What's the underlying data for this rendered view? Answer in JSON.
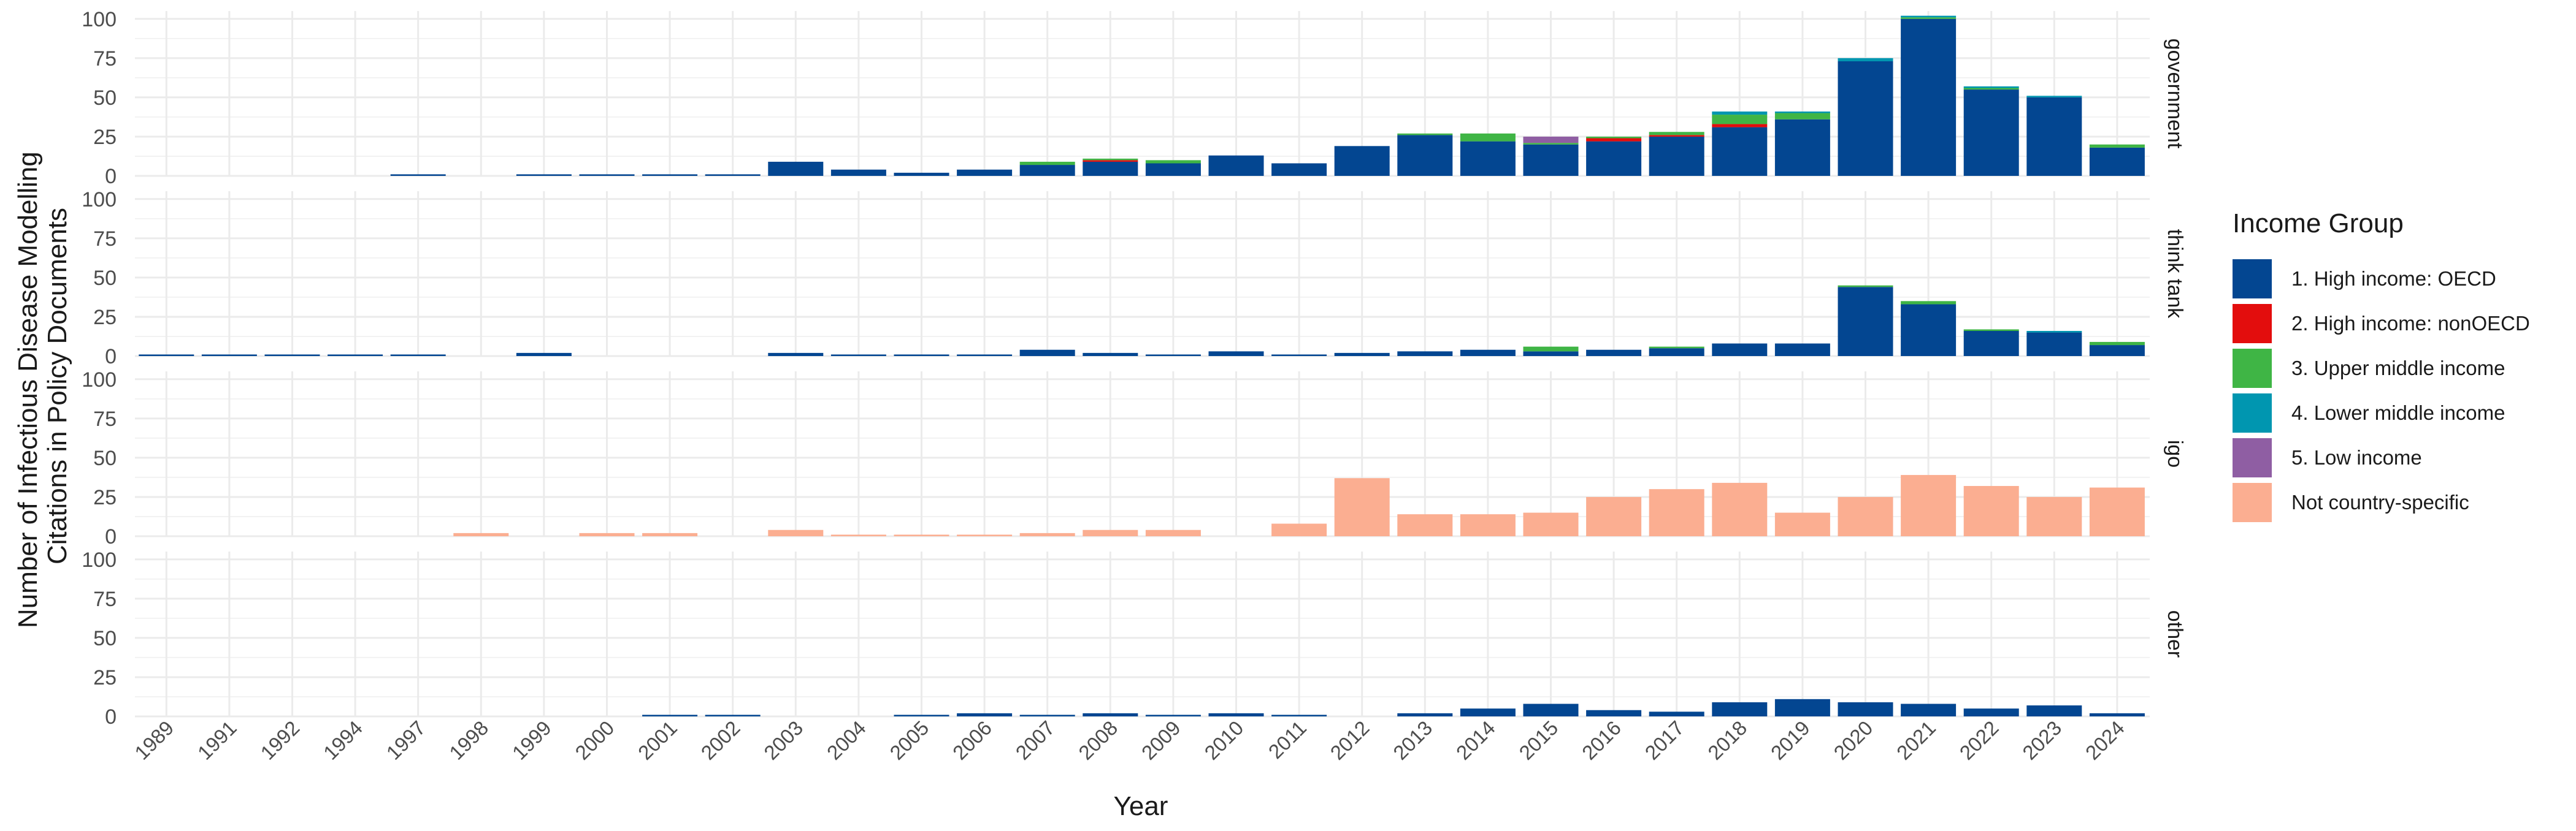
{
  "chart_data": {
    "type": "bar",
    "stacked": true,
    "facets": [
      "government",
      "think tank",
      "igo",
      "other"
    ],
    "xlabel": "Year",
    "ylabel_lines": [
      "Number of Infectious Disease Modelling",
      "Citations in Policy Documents"
    ],
    "ylim": [
      0,
      105
    ],
    "yticks": [
      0,
      25,
      50,
      75,
      100
    ],
    "grid": true,
    "legend_position": "right",
    "legend_title": "Income Group",
    "categories": [
      "1989",
      "1991",
      "1992",
      "1994",
      "1997",
      "1998",
      "1999",
      "2000",
      "2001",
      "2002",
      "2003",
      "2004",
      "2005",
      "2006",
      "2007",
      "2008",
      "2009",
      "2010",
      "2011",
      "2012",
      "2013",
      "2014",
      "2015",
      "2016",
      "2017",
      "2018",
      "2019",
      "2020",
      "2021",
      "2022",
      "2023",
      "2024"
    ],
    "series": [
      {
        "name": "1. High income: OECD",
        "color": "#034691"
      },
      {
        "name": "2. High income: nonOECD",
        "color": "#e30d0d"
      },
      {
        "name": "3. Upper middle income",
        "color": "#3fb545"
      },
      {
        "name": "4. Lower middle income",
        "color": "#0096b0"
      },
      {
        "name": "5. Low income",
        "color": "#8f5ea3"
      },
      {
        "name": "Not country-specific",
        "color": "#fbae91"
      }
    ],
    "panels": [
      {
        "facet": "government",
        "values": [
          [
            0,
            0,
            0,
            0,
            1,
            0,
            1,
            1,
            1,
            1,
            9,
            4,
            2,
            4,
            7,
            9,
            8,
            13,
            8,
            19,
            26,
            22,
            20,
            22,
            25,
            31,
            36,
            73,
            100,
            55,
            50,
            18
          ],
          [
            0,
            0,
            0,
            0,
            0,
            0,
            0,
            0,
            0,
            0,
            0,
            0,
            0,
            0,
            0,
            1,
            0,
            0,
            0,
            0,
            0,
            0,
            0,
            2,
            1,
            2,
            0,
            0,
            0,
            0,
            0,
            0
          ],
          [
            0,
            0,
            0,
            0,
            0,
            0,
            0,
            0,
            0,
            0,
            0,
            0,
            0,
            0,
            2,
            1,
            2,
            0,
            0,
            0,
            1,
            5,
            1,
            1,
            2,
            6,
            4,
            0,
            1,
            1,
            0,
            2
          ],
          [
            0,
            0,
            0,
            0,
            0,
            0,
            0,
            0,
            0,
            0,
            0,
            0,
            0,
            0,
            0,
            0,
            0,
            0,
            0,
            0,
            0,
            0,
            0,
            0,
            0,
            2,
            1,
            2,
            1,
            1,
            1,
            0
          ],
          [
            0,
            0,
            0,
            0,
            0,
            0,
            0,
            0,
            0,
            0,
            0,
            0,
            0,
            0,
            0,
            0,
            0,
            0,
            0,
            0,
            0,
            0,
            4,
            0,
            0,
            0,
            0,
            0,
            0,
            0,
            0,
            0
          ],
          [
            0,
            0,
            0,
            0,
            0,
            0,
            0,
            0,
            0,
            0,
            0,
            0,
            0,
            0,
            0,
            0,
            0,
            0,
            0,
            0,
            0,
            0,
            0,
            0,
            0,
            0,
            0,
            0,
            0,
            0,
            0,
            0
          ]
        ]
      },
      {
        "facet": "think tank",
        "values": [
          [
            1,
            1,
            1,
            1,
            1,
            0,
            2,
            0,
            0,
            0,
            2,
            1,
            1,
            1,
            4,
            2,
            1,
            3,
            1,
            2,
            3,
            4,
            3,
            4,
            5,
            8,
            8,
            44,
            33,
            16,
            15,
            7
          ],
          [
            0,
            0,
            0,
            0,
            0,
            0,
            0,
            0,
            0,
            0,
            0,
            0,
            0,
            0,
            0,
            0,
            0,
            0,
            0,
            0,
            0,
            0,
            0,
            0,
            0,
            0,
            0,
            0,
            0,
            0,
            0,
            0
          ],
          [
            0,
            0,
            0,
            0,
            0,
            0,
            0,
            0,
            0,
            0,
            0,
            0,
            0,
            0,
            0,
            0,
            0,
            0,
            0,
            0,
            0,
            0,
            3,
            0,
            1,
            0,
            0,
            1,
            2,
            1,
            0,
            2
          ],
          [
            0,
            0,
            0,
            0,
            0,
            0,
            0,
            0,
            0,
            0,
            0,
            0,
            0,
            0,
            0,
            0,
            0,
            0,
            0,
            0,
            0,
            0,
            0,
            0,
            0,
            0,
            0,
            0,
            0,
            0,
            1,
            0
          ],
          [
            0,
            0,
            0,
            0,
            0,
            0,
            0,
            0,
            0,
            0,
            0,
            0,
            0,
            0,
            0,
            0,
            0,
            0,
            0,
            0,
            0,
            0,
            0,
            0,
            0,
            0,
            0,
            0,
            0,
            0,
            0,
            0
          ],
          [
            0,
            0,
            0,
            0,
            0,
            0,
            0,
            0,
            0,
            0,
            0,
            0,
            0,
            0,
            0,
            0,
            0,
            0,
            0,
            0,
            0,
            0,
            0,
            0,
            0,
            0,
            0,
            0,
            0,
            0,
            0,
            0
          ]
        ]
      },
      {
        "facet": "igo",
        "values": [
          [
            0,
            0,
            0,
            0,
            0,
            0,
            0,
            0,
            0,
            0,
            0,
            0,
            0,
            0,
            0,
            0,
            0,
            0,
            0,
            0,
            0,
            0,
            0,
            0,
            0,
            0,
            0,
            0,
            0,
            0,
            0,
            0
          ],
          [
            0,
            0,
            0,
            0,
            0,
            0,
            0,
            0,
            0,
            0,
            0,
            0,
            0,
            0,
            0,
            0,
            0,
            0,
            0,
            0,
            0,
            0,
            0,
            0,
            0,
            0,
            0,
            0,
            0,
            0,
            0,
            0
          ],
          [
            0,
            0,
            0,
            0,
            0,
            0,
            0,
            0,
            0,
            0,
            0,
            0,
            0,
            0,
            0,
            0,
            0,
            0,
            0,
            0,
            0,
            0,
            0,
            0,
            0,
            0,
            0,
            0,
            0,
            0,
            0,
            0
          ],
          [
            0,
            0,
            0,
            0,
            0,
            0,
            0,
            0,
            0,
            0,
            0,
            0,
            0,
            0,
            0,
            0,
            0,
            0,
            0,
            0,
            0,
            0,
            0,
            0,
            0,
            0,
            0,
            0,
            0,
            0,
            0,
            0
          ],
          [
            0,
            0,
            0,
            0,
            0,
            0,
            0,
            0,
            0,
            0,
            0,
            0,
            0,
            0,
            0,
            0,
            0,
            0,
            0,
            0,
            0,
            0,
            0,
            0,
            0,
            0,
            0,
            0,
            0,
            0,
            0,
            0
          ],
          [
            0,
            0,
            0,
            0,
            0,
            2,
            0,
            2,
            2,
            0,
            4,
            1,
            1,
            1,
            2,
            4,
            4,
            0,
            8,
            37,
            14,
            14,
            15,
            25,
            30,
            34,
            15,
            25,
            39,
            32,
            25,
            31
          ]
        ]
      },
      {
        "facet": "other",
        "values": [
          [
            0,
            0,
            0,
            0,
            0,
            0,
            0,
            0,
            1,
            1,
            0,
            0,
            1,
            2,
            1,
            2,
            1,
            2,
            1,
            0,
            2,
            5,
            8,
            4,
            3,
            9,
            11,
            9,
            8,
            5,
            7,
            2
          ],
          [
            0,
            0,
            0,
            0,
            0,
            0,
            0,
            0,
            0,
            0,
            0,
            0,
            0,
            0,
            0,
            0,
            0,
            0,
            0,
            0,
            0,
            0,
            0,
            0,
            0,
            0,
            0,
            0,
            0,
            0,
            0,
            0
          ],
          [
            0,
            0,
            0,
            0,
            0,
            0,
            0,
            0,
            0,
            0,
            0,
            0,
            0,
            0,
            0,
            0,
            0,
            0,
            0,
            0,
            0,
            0,
            0,
            0,
            0,
            0,
            0,
            0,
            0,
            0,
            0,
            0
          ],
          [
            0,
            0,
            0,
            0,
            0,
            0,
            0,
            0,
            0,
            0,
            0,
            0,
            0,
            0,
            0,
            0,
            0,
            0,
            0,
            0,
            0,
            0,
            0,
            0,
            0,
            0,
            0,
            0,
            0,
            0,
            0,
            0
          ],
          [
            0,
            0,
            0,
            0,
            0,
            0,
            0,
            0,
            0,
            0,
            0,
            0,
            0,
            0,
            0,
            0,
            0,
            0,
            0,
            0,
            0,
            0,
            0,
            0,
            0,
            0,
            0,
            0,
            0,
            0,
            0,
            0
          ],
          [
            0,
            0,
            0,
            0,
            0,
            0,
            0,
            0,
            0,
            0,
            0,
            0,
            0,
            0,
            0,
            0,
            0,
            0,
            0,
            0,
            0,
            0,
            0,
            0,
            0,
            0,
            0,
            0,
            0,
            0,
            0,
            0
          ]
        ]
      }
    ]
  }
}
